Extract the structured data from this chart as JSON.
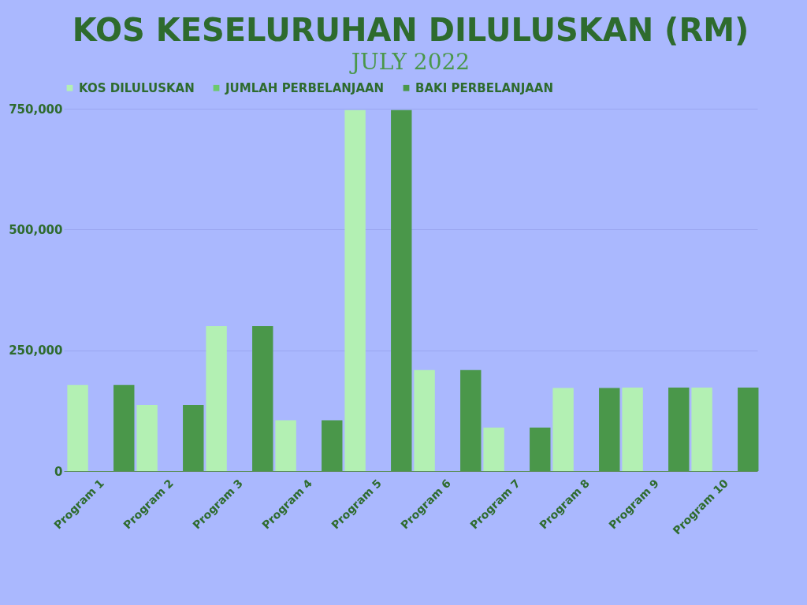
{
  "chart_data": {
    "type": "bar",
    "title": "KOS KESELURUHAN DILULUSKAN (RM)",
    "subtitle": "JULY 2022",
    "categories": [
      "Program 1",
      "Program 2",
      "Program 3",
      "Program 4",
      "Program 5",
      "Program 6",
      "Program 7",
      "Program 8",
      "Program 9",
      "Program 10"
    ],
    "series": [
      {
        "name": "KOS DILULUSKAN",
        "color": "#b3f0b3",
        "values": [
          178000,
          137000,
          300000,
          105000,
          747000,
          209000,
          90000,
          172000,
          173000,
          173000
        ]
      },
      {
        "name": "JUMLAH PERBELANJAAN",
        "color": "#6cc96c",
        "values": [
          0,
          0,
          0,
          0,
          0,
          0,
          0,
          0,
          0,
          0
        ]
      },
      {
        "name": "BAKI PERBELANJAAN",
        "color": "#4a974a",
        "values": [
          178000,
          137000,
          300000,
          105000,
          747000,
          209000,
          90000,
          172000,
          173000,
          173000
        ]
      }
    ],
    "ylim": [
      0,
      750000
    ],
    "yticks": [
      {
        "value": 0,
        "label": "0"
      },
      {
        "value": 250000,
        "label": "250,000"
      },
      {
        "value": 500000,
        "label": "500,000"
      },
      {
        "value": 750000,
        "label": "750,000"
      }
    ],
    "grid": "y",
    "legend": "top"
  }
}
